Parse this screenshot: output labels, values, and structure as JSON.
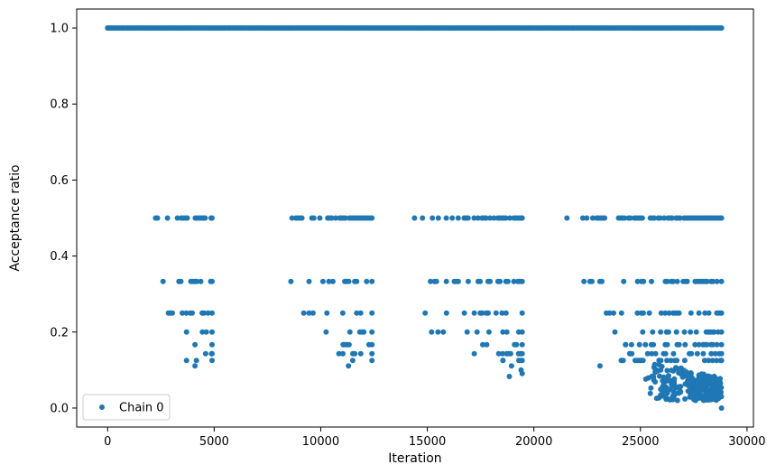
{
  "chart_data": {
    "type": "scatter",
    "xlabel": "Iteration",
    "ylabel": "Acceptance ratio",
    "xlim": [
      -1450,
      30300
    ],
    "ylim": [
      -0.05,
      1.05
    ],
    "xticks": [
      0,
      5000,
      10000,
      15000,
      20000,
      25000,
      30000
    ],
    "yticks": [
      0.0,
      0.2,
      0.4,
      0.6,
      0.8,
      1.0
    ],
    "legend_position": "lower-left",
    "grid": false,
    "series": [
      {
        "name": "Chain 0",
        "color": "#1f77b4",
        "marker": "circle",
        "points": [],
        "bands": [
          {
            "y": 1.0,
            "x": [
              0,
              28800
            ],
            "density": 1.0
          },
          {
            "y": 0.5,
            "x": [
              2250,
              4900
            ],
            "density": 0.9
          },
          {
            "y": 0.5,
            "x": [
              8650,
              12400
            ],
            "density": 0.9
          },
          {
            "y": 0.5,
            "x": [
              14400,
              19450
            ],
            "density": 0.9
          },
          {
            "y": 0.5,
            "x": [
              21550,
              28800
            ],
            "density": 0.9
          },
          {
            "y": 0.3333,
            "x": [
              2600,
              4900
            ],
            "density": 0.6
          },
          {
            "y": 0.3333,
            "x": [
              9450,
              12400
            ],
            "density": 0.6
          },
          {
            "y": 0.3333,
            "x": [
              15150,
              19450
            ],
            "density": 0.6
          },
          {
            "y": 0.3333,
            "x": [
              22350,
              28800
            ],
            "density": 0.6
          },
          {
            "y": 0.25,
            "x": [
              2850,
              4900
            ],
            "density": 0.4
          },
          {
            "y": 0.25,
            "x": [
              9450,
              12400
            ],
            "density": 0.4
          },
          {
            "y": 0.25,
            "x": [
              15900,
              19450
            ],
            "density": 0.4
          },
          {
            "y": 0.25,
            "x": [
              23550,
              28800
            ],
            "density": 0.5
          },
          {
            "y": 0.2,
            "x": [
              3700,
              4900
            ],
            "density": 0.35
          },
          {
            "y": 0.2,
            "x": [
              10250,
              12400
            ],
            "density": 0.35
          },
          {
            "y": 0.2,
            "x": [
              15750,
              19450
            ],
            "density": 0.3
          },
          {
            "y": 0.2,
            "x": [
              23800,
              28800
            ],
            "density": 0.45
          },
          {
            "y": 0.1667,
            "x": [
              4100,
              4900
            ],
            "density": 0.2
          },
          {
            "y": 0.1667,
            "x": [
              11050,
              12400
            ],
            "density": 0.3
          },
          {
            "y": 0.1667,
            "x": [
              17600,
              19450
            ],
            "density": 0.3
          },
          {
            "y": 0.1667,
            "x": [
              24300,
              28800
            ],
            "density": 0.45
          },
          {
            "y": 0.1429,
            "x": [
              4600,
              4900
            ],
            "density": 0.15
          },
          {
            "y": 0.1429,
            "x": [
              10850,
              12400
            ],
            "density": 0.25
          },
          {
            "y": 0.1429,
            "x": [
              18350,
              19450
            ],
            "density": 0.25
          },
          {
            "y": 0.1429,
            "x": [
              24500,
              28800
            ],
            "density": 0.4
          },
          {
            "y": 0.125,
            "x": [
              3700,
              4900
            ],
            "density": 0.1
          },
          {
            "y": 0.125,
            "x": [
              11500,
              12400
            ],
            "density": 0.2
          },
          {
            "y": 0.125,
            "x": [
              18550,
              19450
            ],
            "density": 0.2
          },
          {
            "y": 0.125,
            "x": [
              24100,
              28800
            ],
            "density": 0.4
          }
        ],
        "scatter_points": [
          {
            "x": 4100,
            "y": 0.111
          },
          {
            "x": 11300,
            "y": 0.111
          },
          {
            "x": 18950,
            "y": 0.111
          },
          {
            "x": 19400,
            "y": 0.1
          },
          {
            "x": 18850,
            "y": 0.083
          },
          {
            "x": 19450,
            "y": 0.091
          },
          {
            "x": 23100,
            "y": 0.111
          },
          {
            "x": 8600,
            "y": 0.333
          },
          {
            "x": 14900,
            "y": 0.25
          },
          {
            "x": 23400,
            "y": 0.25
          },
          {
            "x": 15200,
            "y": 0.2
          },
          {
            "x": 15500,
            "y": 0.2
          },
          {
            "x": 9200,
            "y": 0.25
          },
          {
            "x": 17200,
            "y": 0.143
          },
          {
            "x": 28800,
            "y": 0.0
          }
        ],
        "tail_cloud": {
          "x": [
            25100,
            28800
          ],
          "y": [
            0.02,
            0.12
          ],
          "count": 260
        }
      }
    ]
  }
}
